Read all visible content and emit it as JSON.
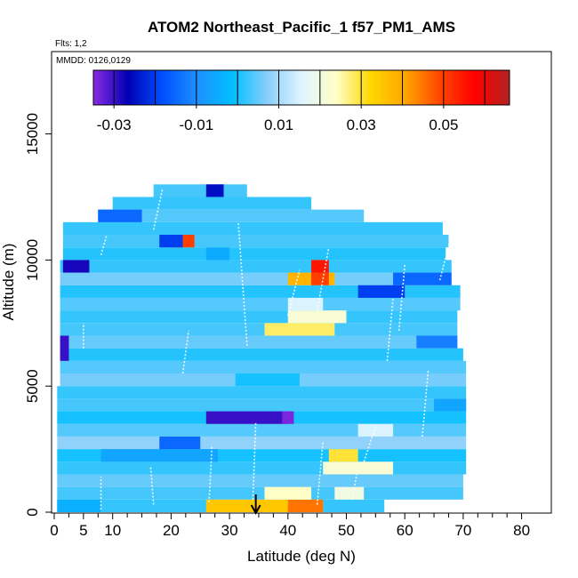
{
  "chart_data": {
    "type": "heatmap",
    "title": "ATOM2 Northeast_Pacific_1 f57_PM1_AMS",
    "flights_note": "Flts: 1,2",
    "dates_note": "MMDD: 0126,0129",
    "xlabel": "Latitude (deg N)",
    "ylabel": "Altitude (m)",
    "xlim": [
      0,
      85
    ],
    "ylim": [
      0,
      18000
    ],
    "x_ticks": [
      0,
      5,
      10,
      20,
      30,
      40,
      50,
      60,
      70,
      80
    ],
    "x_minor_ticks": [
      2.5,
      7.5,
      12.5,
      15,
      17.5,
      22.5,
      25,
      27.5,
      32.5,
      35,
      37.5,
      42.5,
      45,
      47.5,
      52.5,
      55,
      57.5,
      62.5,
      65,
      67.5,
      72.5,
      75,
      77.5
    ],
    "y_ticks": [
      0,
      5000,
      10000,
      15000
    ],
    "colorbar": {
      "ticks": [
        -0.03,
        -0.01,
        0.01,
        0.03,
        0.05
      ],
      "tick_labels": [
        "-0.03",
        "-0.01",
        "0.01",
        "0.03",
        "0.05"
      ],
      "range": [
        -0.035,
        0.066
      ],
      "colors": [
        "#8a2be2",
        "#0000b4",
        "#0050ff",
        "#1e90ff",
        "#00bfff",
        "#87cefa",
        "#e0f4ff",
        "#ffffc8",
        "#ffd700",
        "#ffa500",
        "#ff4500",
        "#ff0000",
        "#b22222"
      ]
    },
    "cells": [
      {
        "y0": 0,
        "y1": 500,
        "x0": 0.5,
        "x1": 56.5,
        "v": 0.002
      },
      {
        "y0": 500,
        "y1": 1000,
        "x0": 0.5,
        "x1": 70,
        "v": 0.003
      },
      {
        "y0": 1000,
        "y1": 1500,
        "x0": 0.5,
        "x1": 70,
        "v": 0.005
      },
      {
        "y0": 1500,
        "y1": 2000,
        "x0": 0.5,
        "x1": 70.5,
        "v": 0.002
      },
      {
        "y0": 2000,
        "y1": 2500,
        "x0": 0.5,
        "x1": 70.5,
        "v": 0.0
      },
      {
        "y0": 2500,
        "y1": 3000,
        "x0": 0.5,
        "x1": 70.5,
        "v": 0.008
      },
      {
        "y0": 3000,
        "y1": 3500,
        "x0": 0.5,
        "x1": 70.5,
        "v": 0.004
      },
      {
        "y0": 3500,
        "y1": 4000,
        "x0": 0.5,
        "x1": 70.5,
        "v": 0.0
      },
      {
        "y0": 4000,
        "y1": 4500,
        "x0": 0.5,
        "x1": 70.5,
        "v": 0.003
      },
      {
        "y0": 4500,
        "y1": 5000,
        "x0": 0.5,
        "x1": 70.5,
        "v": 0.002
      },
      {
        "y0": 5000,
        "y1": 5500,
        "x0": 1,
        "x1": 70.5,
        "v": 0.006
      },
      {
        "y0": 5500,
        "y1": 6000,
        "x0": 1,
        "x1": 70.5,
        "v": 0.004
      },
      {
        "y0": 6000,
        "y1": 6500,
        "x0": 1,
        "x1": 70,
        "v": 0.001
      },
      {
        "y0": 6500,
        "y1": 7000,
        "x0": 1,
        "x1": 69,
        "v": 0.005
      },
      {
        "y0": 7000,
        "y1": 7500,
        "x0": 1,
        "x1": 69,
        "v": 0.003
      },
      {
        "y0": 7500,
        "y1": 8000,
        "x0": 1,
        "x1": 69,
        "v": 0.002
      },
      {
        "y0": 8000,
        "y1": 8500,
        "x0": 1,
        "x1": 69.5,
        "v": 0.004
      },
      {
        "y0": 8500,
        "y1": 9000,
        "x0": 1,
        "x1": 69.5,
        "v": 0.001
      },
      {
        "y0": 9000,
        "y1": 9500,
        "x0": 1,
        "x1": 68,
        "v": 0.006
      },
      {
        "y0": 9500,
        "y1": 10000,
        "x0": 1,
        "x1": 68,
        "v": 0.002
      },
      {
        "y0": 10000,
        "y1": 10500,
        "x0": 1.5,
        "x1": 67,
        "v": 0.001
      },
      {
        "y0": 10500,
        "y1": 11000,
        "x0": 1.5,
        "x1": 67.5,
        "v": 0.003
      },
      {
        "y0": 11000,
        "y1": 11500,
        "x0": 1.5,
        "x1": 66.5,
        "v": 0.002
      },
      {
        "y0": 11500,
        "y1": 12000,
        "x0": 7.5,
        "x1": 53,
        "v": 0.004
      },
      {
        "y0": 12000,
        "y1": 12500,
        "x0": 10,
        "x1": 44,
        "v": 0.002
      },
      {
        "y0": 12500,
        "y1": 13000,
        "x0": 17,
        "x1": 33,
        "v": 0.003
      },
      {
        "y0": 0,
        "y1": 500,
        "x0": 26,
        "x1": 46,
        "v": 0.035
      },
      {
        "y0": 0,
        "y1": 500,
        "x0": 40,
        "x1": 46,
        "v": 0.045
      },
      {
        "y0": 500,
        "y1": 1000,
        "x0": 36,
        "x1": 44,
        "v": 0.024
      },
      {
        "y0": 500,
        "y1": 1000,
        "x0": 48,
        "x1": 53,
        "v": 0.02
      },
      {
        "y0": 0,
        "y1": 500,
        "x0": 0.5,
        "x1": 8,
        "v": -0.004
      },
      {
        "y0": 1500,
        "y1": 2000,
        "x0": 46,
        "x1": 58,
        "v": 0.022
      },
      {
        "y0": 2000,
        "y1": 2500,
        "x0": 47,
        "x1": 52,
        "v": 0.03
      },
      {
        "y0": 2000,
        "y1": 2500,
        "x0": 8,
        "x1": 28,
        "v": -0.006
      },
      {
        "y0": 2500,
        "y1": 3000,
        "x0": 18,
        "x1": 25,
        "v": -0.015
      },
      {
        "y0": 3500,
        "y1": 4000,
        "x0": 26,
        "x1": 40,
        "v": -0.03
      },
      {
        "y0": 3500,
        "y1": 4000,
        "x0": 39,
        "x1": 41,
        "v": -0.034
      },
      {
        "y0": 5000,
        "y1": 5500,
        "x0": 31,
        "x1": 42,
        "v": 0.0
      },
      {
        "y0": 7000,
        "y1": 7500,
        "x0": 36,
        "x1": 48,
        "v": 0.028
      },
      {
        "y0": 7500,
        "y1": 8000,
        "x0": 40,
        "x1": 50,
        "v": 0.022
      },
      {
        "y0": 8000,
        "y1": 8500,
        "x0": 40,
        "x1": 46,
        "v": 0.015
      },
      {
        "y0": 9000,
        "y1": 9500,
        "x0": 40,
        "x1": 48,
        "v": 0.038
      },
      {
        "y0": 9500,
        "y1": 10000,
        "x0": 44,
        "x1": 47,
        "v": 0.055
      },
      {
        "y0": 9000,
        "y1": 9500,
        "x0": 44,
        "x1": 47,
        "v": 0.05
      },
      {
        "y0": 9500,
        "y1": 10000,
        "x0": 1.5,
        "x1": 6,
        "v": -0.028
      },
      {
        "y0": 9000,
        "y1": 9500,
        "x0": 58,
        "x1": 68,
        "v": -0.015
      },
      {
        "y0": 8500,
        "y1": 9000,
        "x0": 52,
        "x1": 60,
        "v": -0.02
      },
      {
        "y0": 10500,
        "y1": 11000,
        "x0": 20,
        "x1": 24,
        "v": 0.05
      },
      {
        "y0": 10500,
        "y1": 11000,
        "x0": 18,
        "x1": 22,
        "v": -0.02
      },
      {
        "y0": 12500,
        "y1": 13000,
        "x0": 26,
        "x1": 29,
        "v": -0.025
      },
      {
        "y0": 11500,
        "y1": 12000,
        "x0": 7.5,
        "x1": 15,
        "v": -0.015
      },
      {
        "y0": 6000,
        "y1": 7000,
        "x0": 1,
        "x1": 2.5,
        "v": -0.03
      },
      {
        "y0": 4000,
        "y1": 4500,
        "x0": 65,
        "x1": 70.5,
        "v": -0.006
      },
      {
        "y0": 6500,
        "y1": 7000,
        "x0": 62,
        "x1": 69,
        "v": -0.012
      },
      {
        "y0": 3000,
        "y1": 3500,
        "x0": 52,
        "x1": 58,
        "v": 0.015
      },
      {
        "y0": 10000,
        "y1": 10500,
        "x0": 26,
        "x1": 30,
        "v": -0.005
      }
    ],
    "arrow_x": 34.5
  }
}
